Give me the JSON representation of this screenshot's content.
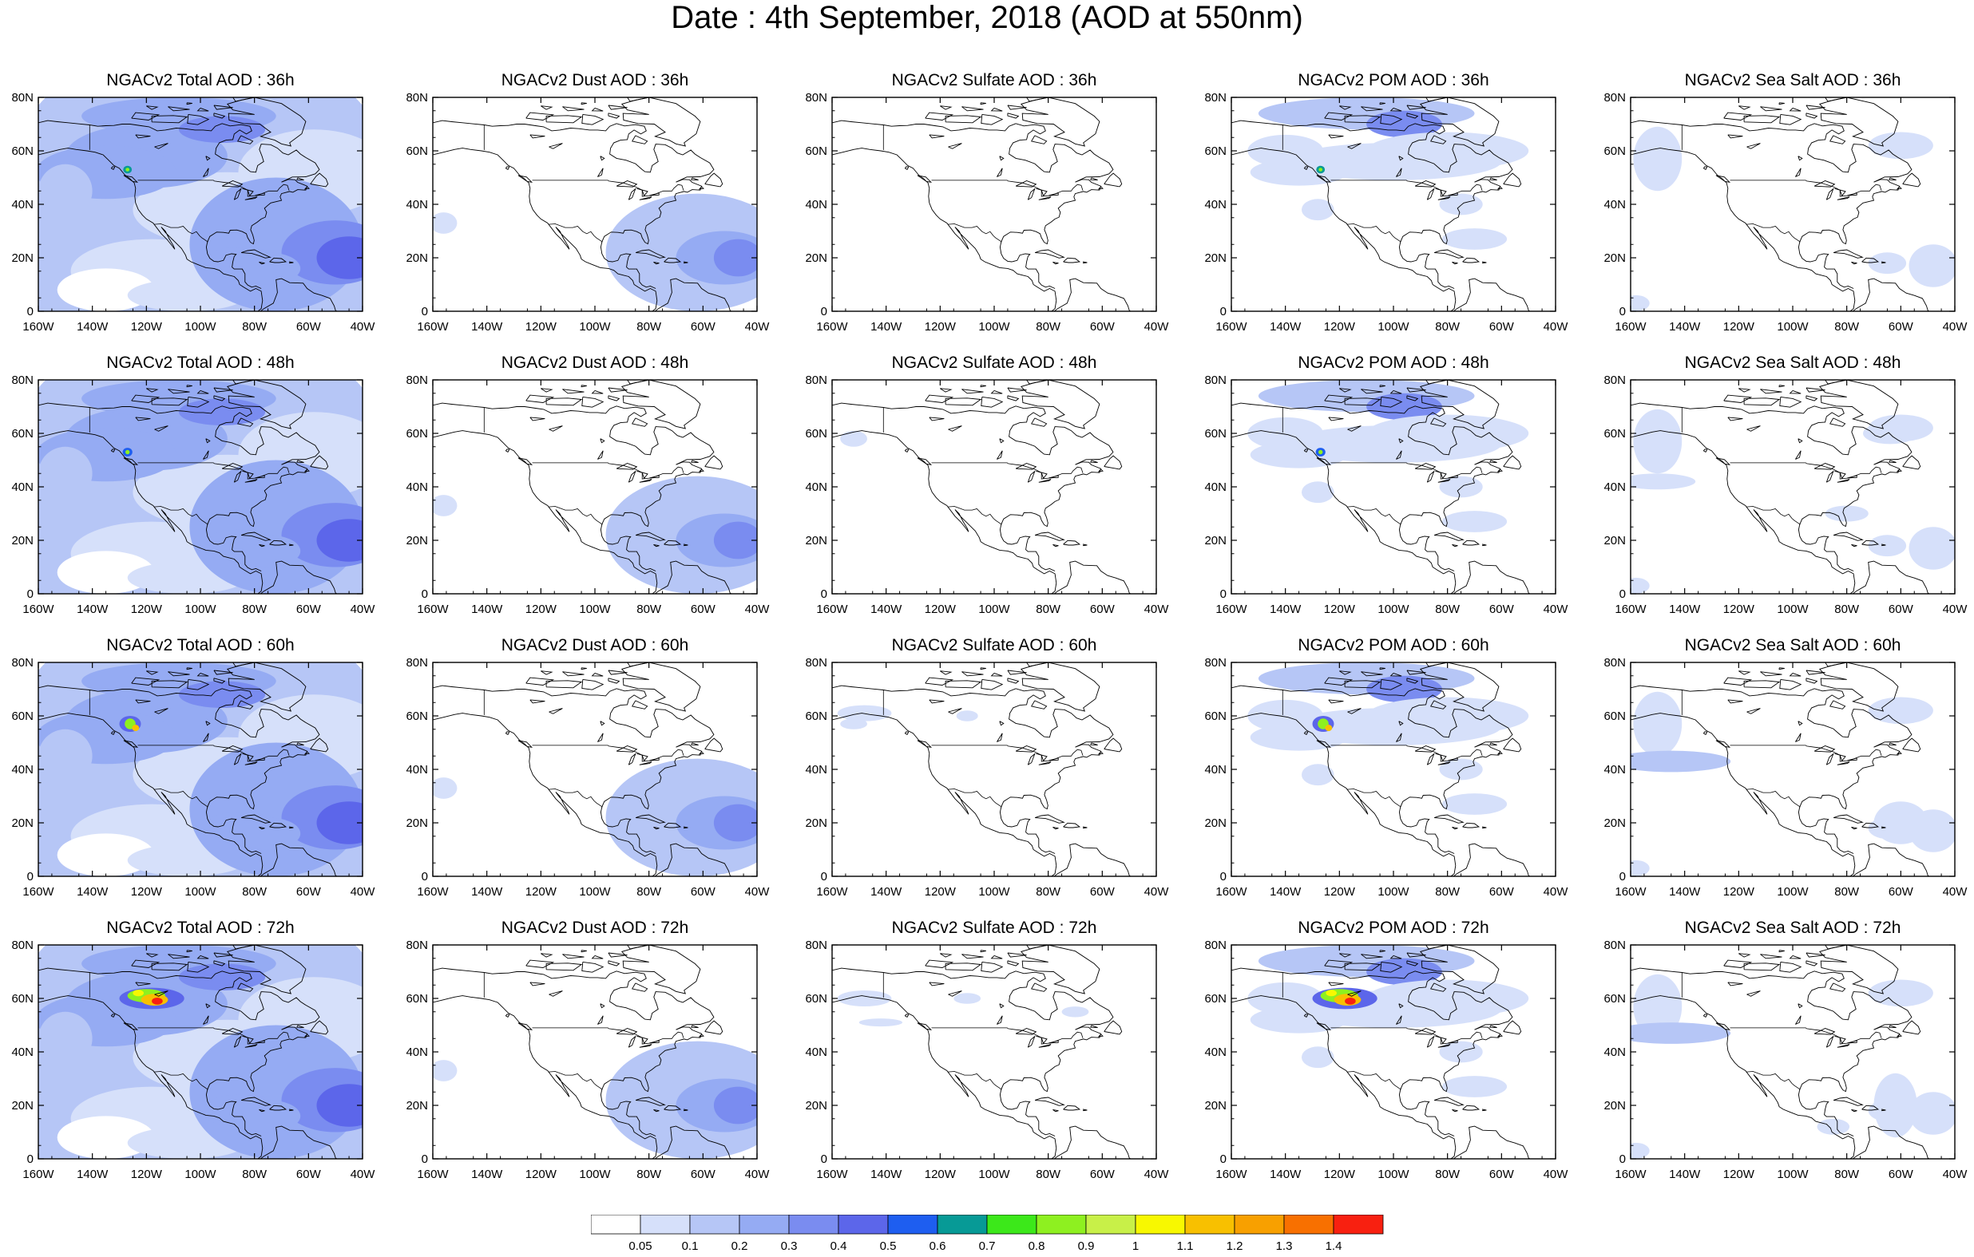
{
  "figure": {
    "title": "Date : 4th September, 2018 (AOD at 550nm)"
  },
  "map_axes": {
    "x_ticks": [
      "160W",
      "140W",
      "120W",
      "100W",
      "80W",
      "60W",
      "40W"
    ],
    "y_ticks": [
      "0",
      "20N",
      "40N",
      "60N",
      "80N"
    ]
  },
  "panels": [
    {
      "title": "NGACv2 Total AOD : 36h",
      "species": "total",
      "hour": 36
    },
    {
      "title": "NGACv2 Dust AOD : 36h",
      "species": "dust",
      "hour": 36
    },
    {
      "title": "NGACv2 Sulfate AOD : 36h",
      "species": "sulfate",
      "hour": 36
    },
    {
      "title": "NGACv2 POM AOD : 36h",
      "species": "pom",
      "hour": 36
    },
    {
      "title": "NGACv2 Sea Salt AOD : 36h",
      "species": "seasalt",
      "hour": 36
    },
    {
      "title": "NGACv2 Total AOD : 48h",
      "species": "total",
      "hour": 48
    },
    {
      "title": "NGACv2 Dust AOD : 48h",
      "species": "dust",
      "hour": 48
    },
    {
      "title": "NGACv2 Sulfate AOD : 48h",
      "species": "sulfate",
      "hour": 48
    },
    {
      "title": "NGACv2 POM AOD : 48h",
      "species": "pom",
      "hour": 48
    },
    {
      "title": "NGACv2 Sea Salt AOD : 48h",
      "species": "seasalt",
      "hour": 48
    },
    {
      "title": "NGACv2 Total AOD : 60h",
      "species": "total",
      "hour": 60
    },
    {
      "title": "NGACv2 Dust AOD : 60h",
      "species": "dust",
      "hour": 60
    },
    {
      "title": "NGACv2 Sulfate AOD : 60h",
      "species": "sulfate",
      "hour": 60
    },
    {
      "title": "NGACv2 POM AOD : 60h",
      "species": "pom",
      "hour": 60
    },
    {
      "title": "NGACv2 Sea Salt AOD : 60h",
      "species": "seasalt",
      "hour": 60
    },
    {
      "title": "NGACv2 Total AOD : 72h",
      "species": "total",
      "hour": 72
    },
    {
      "title": "NGACv2 Dust AOD : 72h",
      "species": "dust",
      "hour": 72
    },
    {
      "title": "NGACv2 Sulfate AOD : 72h",
      "species": "sulfate",
      "hour": 72
    },
    {
      "title": "NGACv2 POM AOD : 72h",
      "species": "pom",
      "hour": 72
    },
    {
      "title": "NGACv2 Sea Salt  AOD : 72h",
      "species": "seasalt",
      "hour": 72
    }
  ],
  "colorbar": {
    "labels": [
      "0.05",
      "0.1",
      "0.2",
      "0.3",
      "0.4",
      "0.5",
      "0.6",
      "0.7",
      "0.8",
      "0.9",
      "1",
      "1.1",
      "1.2",
      "1.3",
      "1.4"
    ],
    "colors": [
      "#ffffff",
      "#d6e0fa",
      "#b6c6f6",
      "#95abf3",
      "#7a8cf0",
      "#5c66ea",
      "#1e5ef0",
      "#079a96",
      "#3ce81a",
      "#8ef020",
      "#c8f048",
      "#f8f800",
      "#f8c000",
      "#f8a000",
      "#f87000",
      "#f82010"
    ]
  }
}
